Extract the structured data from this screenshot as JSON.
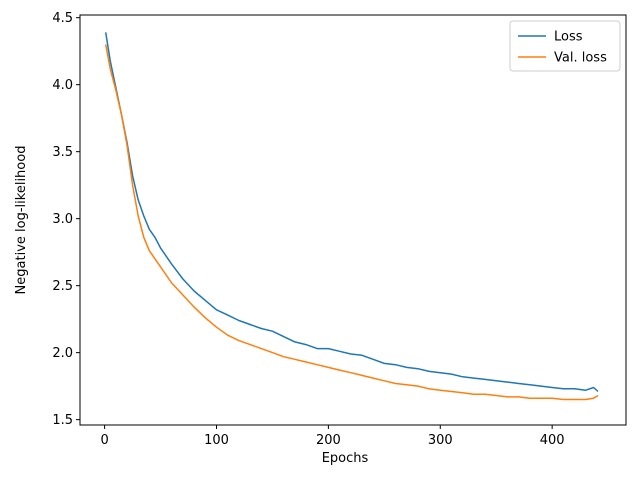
{
  "chart_data": {
    "type": "line",
    "xlabel": "Epochs",
    "ylabel": "Negative log-likelihood",
    "xlim": [
      -22,
      466
    ],
    "ylim": [
      1.46,
      4.52
    ],
    "xticks": [
      0,
      100,
      200,
      300,
      400
    ],
    "yticks": [
      1.5,
      2.0,
      2.5,
      3.0,
      3.5,
      4.0,
      4.5
    ],
    "xtick_labels": [
      "0",
      "100",
      "200",
      "300",
      "400"
    ],
    "ytick_labels": [
      "1.5",
      "2.0",
      "2.5",
      "3.0",
      "3.5",
      "4.0",
      "4.5"
    ],
    "grid": false,
    "legend_position": "top-right",
    "series": [
      {
        "name": "Loss",
        "color": "#1f77b4",
        "x": [
          1,
          5,
          10,
          15,
          20,
          25,
          30,
          35,
          40,
          45,
          50,
          60,
          70,
          80,
          90,
          100,
          110,
          120,
          130,
          140,
          150,
          160,
          170,
          180,
          190,
          200,
          210,
          220,
          230,
          240,
          250,
          260,
          270,
          280,
          290,
          300,
          310,
          320,
          330,
          340,
          350,
          360,
          370,
          380,
          390,
          400,
          410,
          420,
          430,
          437,
          441
        ],
        "y": [
          4.39,
          4.18,
          3.98,
          3.78,
          3.57,
          3.32,
          3.14,
          3.02,
          2.92,
          2.86,
          2.78,
          2.66,
          2.55,
          2.46,
          2.39,
          2.32,
          2.28,
          2.24,
          2.21,
          2.18,
          2.16,
          2.12,
          2.08,
          2.06,
          2.03,
          2.03,
          2.01,
          1.99,
          1.98,
          1.95,
          1.92,
          1.91,
          1.89,
          1.88,
          1.86,
          1.85,
          1.84,
          1.82,
          1.81,
          1.8,
          1.79,
          1.78,
          1.77,
          1.76,
          1.75,
          1.74,
          1.73,
          1.73,
          1.72,
          1.74,
          1.71
        ]
      },
      {
        "name": "Val. loss",
        "color": "#ff7f0e",
        "x": [
          1,
          5,
          10,
          15,
          20,
          25,
          30,
          35,
          40,
          45,
          50,
          60,
          70,
          80,
          90,
          100,
          110,
          120,
          130,
          140,
          150,
          160,
          170,
          180,
          190,
          200,
          210,
          220,
          230,
          240,
          250,
          260,
          270,
          280,
          290,
          300,
          310,
          320,
          330,
          340,
          350,
          360,
          370,
          380,
          390,
          400,
          410,
          420,
          430,
          437,
          441
        ],
        "y": [
          4.3,
          4.12,
          3.96,
          3.78,
          3.55,
          3.25,
          3.02,
          2.86,
          2.76,
          2.7,
          2.64,
          2.52,
          2.43,
          2.34,
          2.26,
          2.19,
          2.13,
          2.09,
          2.06,
          2.03,
          2.0,
          1.97,
          1.95,
          1.93,
          1.91,
          1.89,
          1.87,
          1.85,
          1.83,
          1.81,
          1.79,
          1.77,
          1.76,
          1.75,
          1.73,
          1.72,
          1.71,
          1.7,
          1.69,
          1.69,
          1.68,
          1.67,
          1.67,
          1.66,
          1.66,
          1.66,
          1.65,
          1.65,
          1.65,
          1.66,
          1.68
        ]
      }
    ]
  }
}
